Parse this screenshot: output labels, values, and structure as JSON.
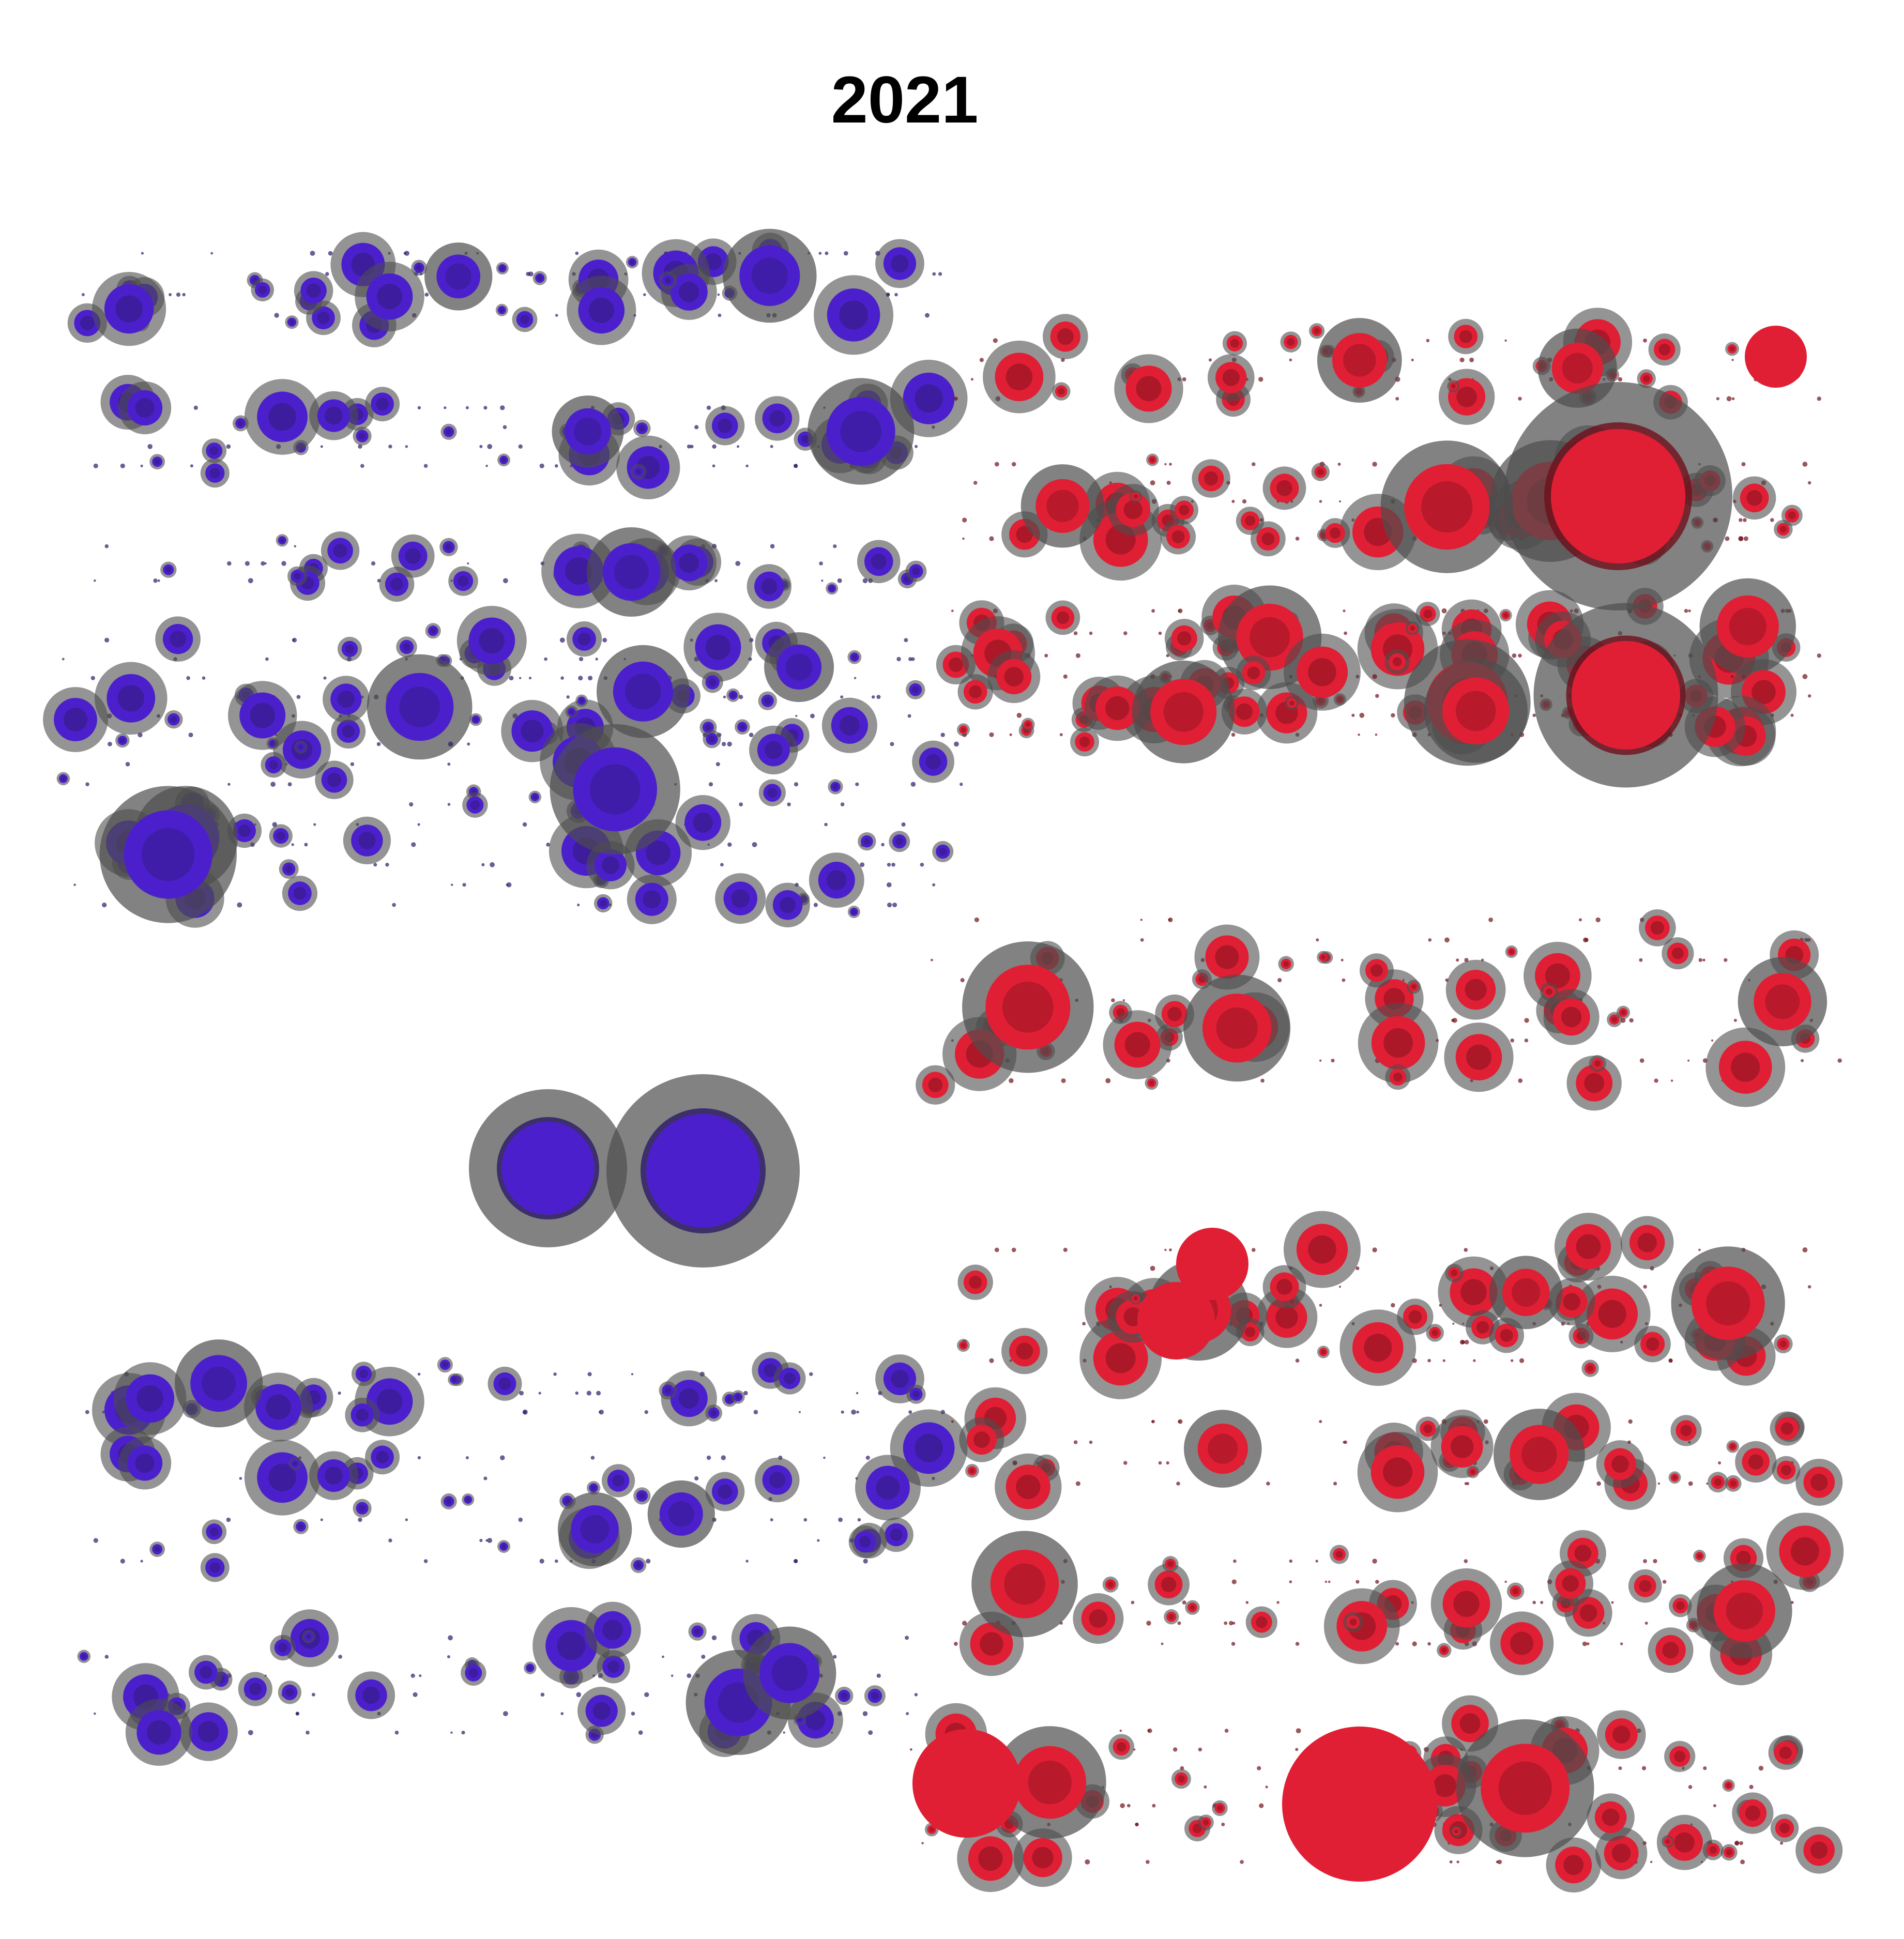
{
  "chart_data": {
    "type": "scatter",
    "title": "2021",
    "colors": {
      "left": "#4b20cc",
      "right": "#e01f35",
      "halo": "#4d4d4d",
      "dot_left": "#2c1a66",
      "dot_right": "#6e0f1a"
    },
    "bands": [
      {
        "side": "left",
        "value": 0.55
      },
      {
        "side": "left",
        "value": 0.5
      },
      {
        "side": "left",
        "value": 0.35
      },
      {
        "side": "left",
        "value": 0.7
      },
      {
        "side": "left",
        "value": 0.85
      },
      {
        "side": "left",
        "value": 0.35
      },
      {
        "side": "left",
        "value": 0.45
      },
      {
        "side": "left",
        "value": 0.55
      },
      {
        "side": "right",
        "value": 0.4
      },
      {
        "side": "right",
        "value": 0.75
      },
      {
        "side": "right",
        "value": 0.45
      },
      {
        "side": "right",
        "value": 0.7
      },
      {
        "side": "right",
        "value": 0.75
      },
      {
        "side": "right",
        "value": 0.75
      },
      {
        "side": "right",
        "value": 0.4
      },
      {
        "side": "right",
        "value": 0.55
      },
      {
        "side": "right",
        "value": 0.85
      }
    ]
  }
}
